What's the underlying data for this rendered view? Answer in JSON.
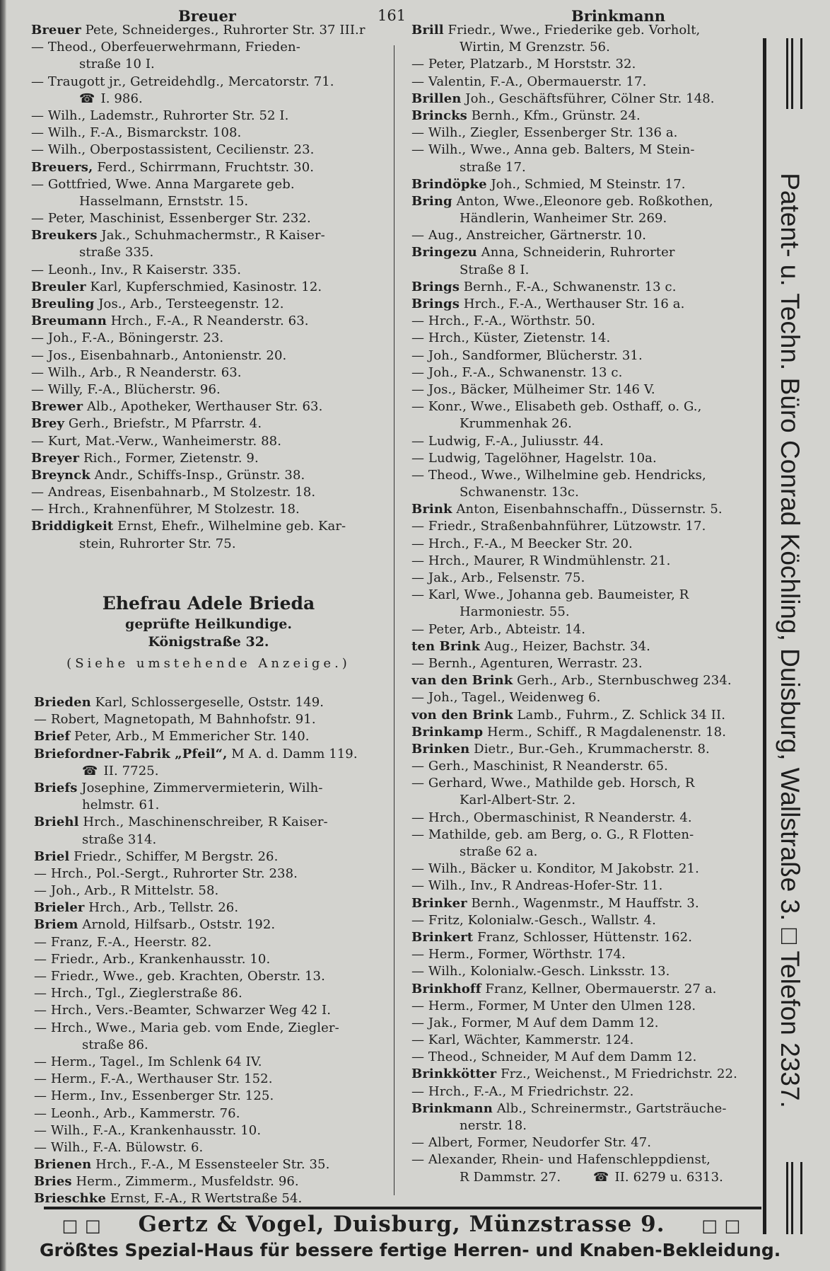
{
  "header": {
    "left": "Breuer",
    "page": "161",
    "right": "Brinkmann"
  },
  "left_top": [
    [
      "Breuer",
      " Pete, Schneiderges., Ruhrorter Str. 37 III.r",
      "e"
    ],
    [
      "",
      "— Theod., Oberfeuerwehrmann, Frieden-",
      "d"
    ],
    [
      "",
      "straße 10 I.",
      "c"
    ],
    [
      "",
      "— Traugott jr., Getreidehdlg., Mercatorstr. 71.",
      "d"
    ],
    [
      "",
      "I. 986.",
      "c",
      "telephone-icon"
    ],
    [
      "",
      "— Wilh., Lademstr., Ruhrorter Str. 52 I.",
      "d"
    ],
    [
      "",
      "— Wilh., F.-A., Bismarckstr. 108.",
      "d"
    ],
    [
      "",
      "— Wilh., Oberpostassistent, Cecilienstr. 23.",
      "d"
    ],
    [
      "Breuers,",
      " Ferd., Schirrmann, Fruchtstr. 30.",
      "e"
    ],
    [
      "",
      "— Gottfried, Wwe. Anna Margarete geb.",
      "d"
    ],
    [
      "",
      "Hasselmann, Ernststr. 15.",
      "c"
    ],
    [
      "",
      "— Peter, Maschinist, Essenberger Str. 232.",
      "d"
    ],
    [
      "Breukers",
      " Jak., Schuhmachermstr., R Kaiser-",
      "e"
    ],
    [
      "",
      "straße 335.",
      "c"
    ],
    [
      "",
      "— Leonh., Inv., R Kaiserstr. 335.",
      "d"
    ],
    [
      "Breuler",
      " Karl, Kupferschmied, Kasinostr. 12.",
      "e"
    ],
    [
      "Breuling",
      " Jos., Arb., Tersteegenstr. 12.",
      "e"
    ],
    [
      "Breumann",
      " Hrch., F.-A., R Neanderstr. 63.",
      "e"
    ],
    [
      "",
      "— Joh., F.-A., Böningerstr. 23.",
      "d"
    ],
    [
      "",
      "— Jos., Eisenbahnarb., Antonienstr. 20.",
      "d"
    ],
    [
      "",
      "— Wilh., Arb., R Neanderstr. 63.",
      "d"
    ],
    [
      "",
      "— Willy, F.-A., Blücherstr. 96.",
      "d"
    ],
    [
      "Brewer",
      " Alb., Apotheker, Werthauser Str. 63.",
      "e"
    ],
    [
      "Brey",
      " Gerh., Briefstr., M Pfarrstr. 4.",
      "e"
    ],
    [
      "",
      "— Kurt, Mat.-Verw., Wanheimerstr. 88.",
      "d"
    ],
    [
      "Breyer",
      " Rich., Former, Zietenstr. 9.",
      "e"
    ],
    [
      "Breynck",
      " Andr., Schiffs-Insp., Grünstr. 38.",
      "e"
    ],
    [
      "",
      "— Andreas, Eisenbahnarb., M Stolzestr. 18.",
      "d"
    ],
    [
      "",
      "— Hrch., Krahnenführer, M Stolzestr. 18.",
      "d"
    ],
    [
      "Briddigkeit",
      " Ernst, Ehefr., Wilhelmine geb. Kar-",
      "e"
    ],
    [
      "",
      "stein, Ruhrorter Str. 75.",
      "c"
    ]
  ],
  "ad": {
    "name": "Ehefrau Adele Brieda",
    "title": "geprüfte Heilkundige.",
    "address": "Königstraße 32.",
    "note": "(Siehe umstehende Anzeige.)"
  },
  "left_bottom": [
    [
      "Brieden",
      " Karl, Schlossergeselle, Oststr. 149.",
      "e"
    ],
    [
      "",
      "— Robert, Magnetopath, M Bahnhofstr. 91.",
      "d"
    ],
    [
      "Brief",
      " Peter, Arb., M Emmericher Str. 140.",
      "e"
    ],
    [
      "Briefordner-Fabrik „Pfeil“,",
      " M A. d. Damm 119.",
      "e"
    ],
    [
      "",
      "II. 7725.",
      "c",
      "telephone-icon"
    ],
    [
      "Briefs",
      " Josephine, Zimmervermieterin, Wilh-",
      "e"
    ],
    [
      "",
      "helmstr. 61.",
      "c"
    ],
    [
      "Briehl",
      " Hrch., Maschinenschreiber, R Kaiser-",
      "e"
    ],
    [
      "",
      "straße 314.",
      "c"
    ],
    [
      "Briel",
      " Friedr., Schiffer, M Bergstr. 26.",
      "e"
    ],
    [
      "",
      "— Hrch., Pol.-Sergt., Ruhrorter Str. 238.",
      "d"
    ],
    [
      "",
      "— Joh., Arb., R Mittelstr. 58.",
      "d"
    ],
    [
      "Brieler",
      " Hrch., Arb., Tellstr. 26.",
      "e"
    ],
    [
      "Briem",
      " Arnold, Hilfsarb., Oststr. 192.",
      "e"
    ],
    [
      "",
      "— Franz, F.-A., Heerstr. 82.",
      "d"
    ],
    [
      "",
      "— Friedr., Arb., Krankenhausstr. 10.",
      "d"
    ],
    [
      "",
      "— Friedr., Wwe., geb. Krachten, Oberstr. 13.",
      "d"
    ],
    [
      "",
      "— Hrch., Tgl., Zieglerstraße 86.",
      "d"
    ],
    [
      "",
      "— Hrch., Vers.-Beamter, Schwarzer Weg 42 I.",
      "d"
    ],
    [
      "",
      "— Hrch., Wwe., Maria geb. vom Ende, Ziegler-",
      "d"
    ],
    [
      "",
      "straße 86.",
      "c"
    ],
    [
      "",
      "— Herm., Tagel., Im Schlenk 64 IV.",
      "d"
    ],
    [
      "",
      "— Herm., F.-A., Werthauser Str. 152.",
      "d"
    ],
    [
      "",
      "— Herm., Inv., Essenberger Str. 125.",
      "d"
    ],
    [
      "",
      "— Leonh., Arb., Kammerstr. 76.",
      "d"
    ],
    [
      "",
      "— Wilh., F.-A., Krankenhausstr. 10.",
      "d"
    ],
    [
      "",
      "— Wilh., F.-A. Bülowstr. 6.",
      "d"
    ],
    [
      "Brienen",
      " Hrch., F.-A., M Essensteeler Str. 35.",
      "e"
    ],
    [
      "Bries",
      " Herm., Zimmerm., Musfeldstr. 96.",
      "e"
    ],
    [
      "Brieschke",
      " Ernst, F.-A., R Wertstraße 54.",
      "e"
    ]
  ],
  "right": [
    [
      "Brill",
      " Friedr., Wwe., Friederike geb. Vorholt,",
      "e"
    ],
    [
      "",
      "Wirtin, M Grenzstr. 56.",
      "c"
    ],
    [
      "",
      "— Peter, Platzarb., M Horststr. 32.",
      "d"
    ],
    [
      "",
      "— Valentin, F.-A., Obermauerstr. 17.",
      "d"
    ],
    [
      "Brillen",
      " Joh., Geschäftsführer, Cölner Str. 148.",
      "e"
    ],
    [
      "Brincks",
      " Bernh., Kfm., Grünstr. 24.",
      "e"
    ],
    [
      "",
      "— Wilh., Ziegler, Essenberger Str. 136 a.",
      "d"
    ],
    [
      "",
      "— Wilh., Wwe., Anna geb. Balters, M Stein-",
      "d"
    ],
    [
      "",
      "straße 17.",
      "c"
    ],
    [
      "Brindöpke",
      " Joh., Schmied, M Steinstr. 17.",
      "e"
    ],
    [
      "Bring",
      " Anton, Wwe.,Eleonore geb. Roßkothen,",
      "e"
    ],
    [
      "",
      "Händlerin, Wanheimer Str. 269.",
      "c"
    ],
    [
      "",
      "— Aug., Anstreicher, Gärtnerstr. 10.",
      "d"
    ],
    [
      "Bringezu",
      " Anna, Schneiderin, Ruhrorter",
      "e"
    ],
    [
      "",
      "Straße 8 I.",
      "c"
    ],
    [
      "Brings",
      " Bernh., F.-A., Schwanenstr. 13 c.",
      "e"
    ],
    [
      "Brings",
      " Hrch., F.-A., Werthauser Str. 16 a.",
      "e"
    ],
    [
      "",
      "— Hrch., F.-A., Wörthstr. 50.",
      "d"
    ],
    [
      "",
      "— Hrch., Küster, Zietenstr. 14.",
      "d"
    ],
    [
      "",
      "— Joh., Sandformer, Blücherstr. 31.",
      "d"
    ],
    [
      "",
      "— Joh., F.-A., Schwanenstr. 13 c.",
      "d"
    ],
    [
      "",
      "— Jos., Bäcker, Mülheimer Str. 146 V.",
      "d"
    ],
    [
      "",
      "— Konr., Wwe., Elisabeth geb. Osthaff, o. G.,",
      "d"
    ],
    [
      "",
      "Krummenhak 26.",
      "c"
    ],
    [
      "",
      "— Ludwig, F.-A., Juliusstr. 44.",
      "d"
    ],
    [
      "",
      "— Ludwig, Tagelöhner, Hagelstr. 10a.",
      "d"
    ],
    [
      "",
      "— Theod., Wwe., Wilhelmine geb. Hendricks,",
      "d"
    ],
    [
      "",
      "Schwanenstr. 13c.",
      "c"
    ],
    [
      "Brink",
      " Anton, Eisenbahnschaffn., Düssernstr. 5.",
      "e"
    ],
    [
      "",
      "— Friedr., Straßenbahnführer, Lützowstr. 17.",
      "d"
    ],
    [
      "",
      "— Hrch., F.-A., M Beecker Str. 20.",
      "d"
    ],
    [
      "",
      "— Hrch., Maurer, R Windmühlenstr. 21.",
      "d"
    ],
    [
      "",
      "— Jak., Arb., Felsenstr. 75.",
      "d"
    ],
    [
      "",
      "— Karl, Wwe., Johanna geb. Baumeister, R",
      "d"
    ],
    [
      "",
      "Harmoniestr. 55.",
      "c"
    ],
    [
      "",
      "— Peter, Arb., Abteistr. 14.",
      "d"
    ],
    [
      "ten Brink",
      " Aug., Heizer, Bachstr. 34.",
      "e"
    ],
    [
      "",
      "— Bernh., Agenturen, Werrastr. 23.",
      "d"
    ],
    [
      "van den Brink",
      " Gerh., Arb., Sternbuschweg 234.",
      "e"
    ],
    [
      "",
      "— Joh., Tagel., Weidenweg 6.",
      "d"
    ],
    [
      "von den Brink",
      " Lamb., Fuhrm., Z. Schlick 34 II.",
      "e"
    ],
    [
      "Brinkamp",
      " Herm., Schiff., R Magdalenenstr. 18.",
      "e"
    ],
    [
      "Brinken",
      " Dietr., Bur.-Geh., Krummacherstr. 8.",
      "e"
    ],
    [
      "",
      "— Gerh., Maschinist, R Neanderstr. 65.",
      "d"
    ],
    [
      "",
      "— Gerhard, Wwe., Mathilde geb. Horsch, R",
      "d"
    ],
    [
      "",
      "Karl-Albert-Str. 2.",
      "c"
    ],
    [
      "",
      "— Hrch., Obermaschinist, R Neanderstr. 4.",
      "d"
    ],
    [
      "",
      "— Mathilde, geb. am Berg, o. G., R Flotten-",
      "d"
    ],
    [
      "",
      "straße 62 a.",
      "c"
    ],
    [
      "",
      "— Wilh., Bäcker u. Konditor, M Jakobstr. 21.",
      "d"
    ],
    [
      "",
      "— Wilh., Inv., R Andreas-Hofer-Str. 11.",
      "d"
    ],
    [
      "Brinker",
      " Bernh., Wagenmstr., M Hauffstr. 3.",
      "e"
    ],
    [
      "",
      "— Fritz, Kolonialw.-Gesch., Wallstr. 4.",
      "d"
    ],
    [
      "Brinkert",
      " Franz, Schlosser, Hüttenstr. 162.",
      "e"
    ],
    [
      "",
      "— Herm., Former, Wörthstr. 174.",
      "d"
    ],
    [
      "",
      "— Wilh., Kolonialw.-Gesch. Linksstr. 13.",
      "d"
    ],
    [
      "Brinkhoff",
      " Franz, Kellner, Obermauerstr. 27 a.",
      "e"
    ],
    [
      "",
      "— Herm., Former, M Unter den Ulmen 128.",
      "d"
    ],
    [
      "",
      "— Jak., Former, M Auf dem Damm 12.",
      "d"
    ],
    [
      "",
      "— Karl, Wächter, Kammerstr. 124.",
      "d"
    ],
    [
      "",
      "— Theod., Schneider, M Auf dem Damm 12.",
      "d"
    ],
    [
      "Brinkkötter",
      " Frz., Weichenst., M Friedrichstr. 22.",
      "e"
    ],
    [
      "",
      "— Hrch., F.-A., M Friedrichstr. 22.",
      "d"
    ],
    [
      "Brinkmann",
      " Alb., Schreinermstr., Gartsträuche-",
      "e"
    ],
    [
      "",
      "nerstr. 18.",
      "c"
    ],
    [
      "",
      "— Albert, Former, Neudorfer Str. 47.",
      "d"
    ],
    [
      "",
      "— Alexander, Rhein- und Hafenschleppdienst,",
      "d"
    ],
    [
      "",
      "R Dammstr. 27.  ",
      "c",
      "",
      "II. 6279 u. 6313."
    ]
  ],
  "sidebar_ad": "Patent- u. Techn. Büro Conrad Köchling, Duisburg, Wallstraße 3. □ Telefon 2337.",
  "footer": {
    "box": "□ □",
    "line1": "Gertz & Vogel, Duisburg, Münzstrasse 9.",
    "line2": "Größtes Spezial-Haus für bessere fertige Herren- und Knaben-Bekleidung."
  },
  "icons": {
    "telephone": "telephone-icon"
  }
}
